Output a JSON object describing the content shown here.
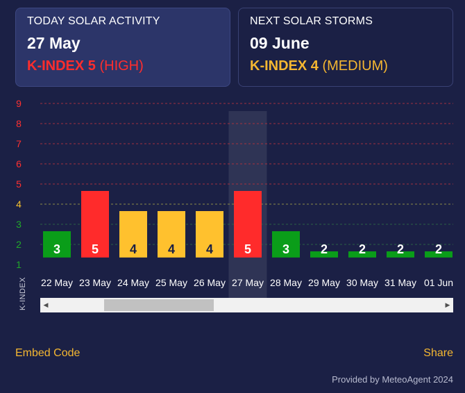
{
  "today": {
    "label": "TODAY SOLAR ACTIVITY",
    "date": "27 May",
    "kindex_label": "K-INDEX 5",
    "level": "(HIGH)",
    "color": "#ff2d2d"
  },
  "next": {
    "label": "NEXT SOLAR STORMS",
    "date": "09 June",
    "kindex_label": "K-INDEX 4",
    "level": "(MEDIUM)",
    "color": "#f5b731"
  },
  "chart_data": {
    "type": "bar",
    "categories": [
      "22 May",
      "23 May",
      "24 May",
      "25 May",
      "26 May",
      "27 May",
      "28 May",
      "29 May",
      "30 May",
      "31 May",
      "01 Jun"
    ],
    "values": [
      3,
      5,
      4,
      4,
      4,
      5,
      3,
      2,
      2,
      2,
      2
    ],
    "ylabel": "K-INDEX",
    "ylim": [
      1,
      9
    ],
    "yticks": [
      "1",
      "2",
      "3",
      "4",
      "5",
      "6",
      "7",
      "8",
      "9"
    ],
    "highlighted_category": "27 May",
    "grid": true,
    "colors": {
      "low": "#0a9d19",
      "medium": "#ffc12e",
      "high": "#ff2b2b",
      "tick_low": "#21a82a",
      "tick_medium": "#f5c12e",
      "tick_high": "#ff3030"
    }
  },
  "scrollbar": {
    "left_arrow": "◀",
    "right_arrow": "▶"
  },
  "footer": {
    "embed": "Embed Code",
    "share": "Share",
    "provided": "Provided by MeteoAgent 2024"
  }
}
